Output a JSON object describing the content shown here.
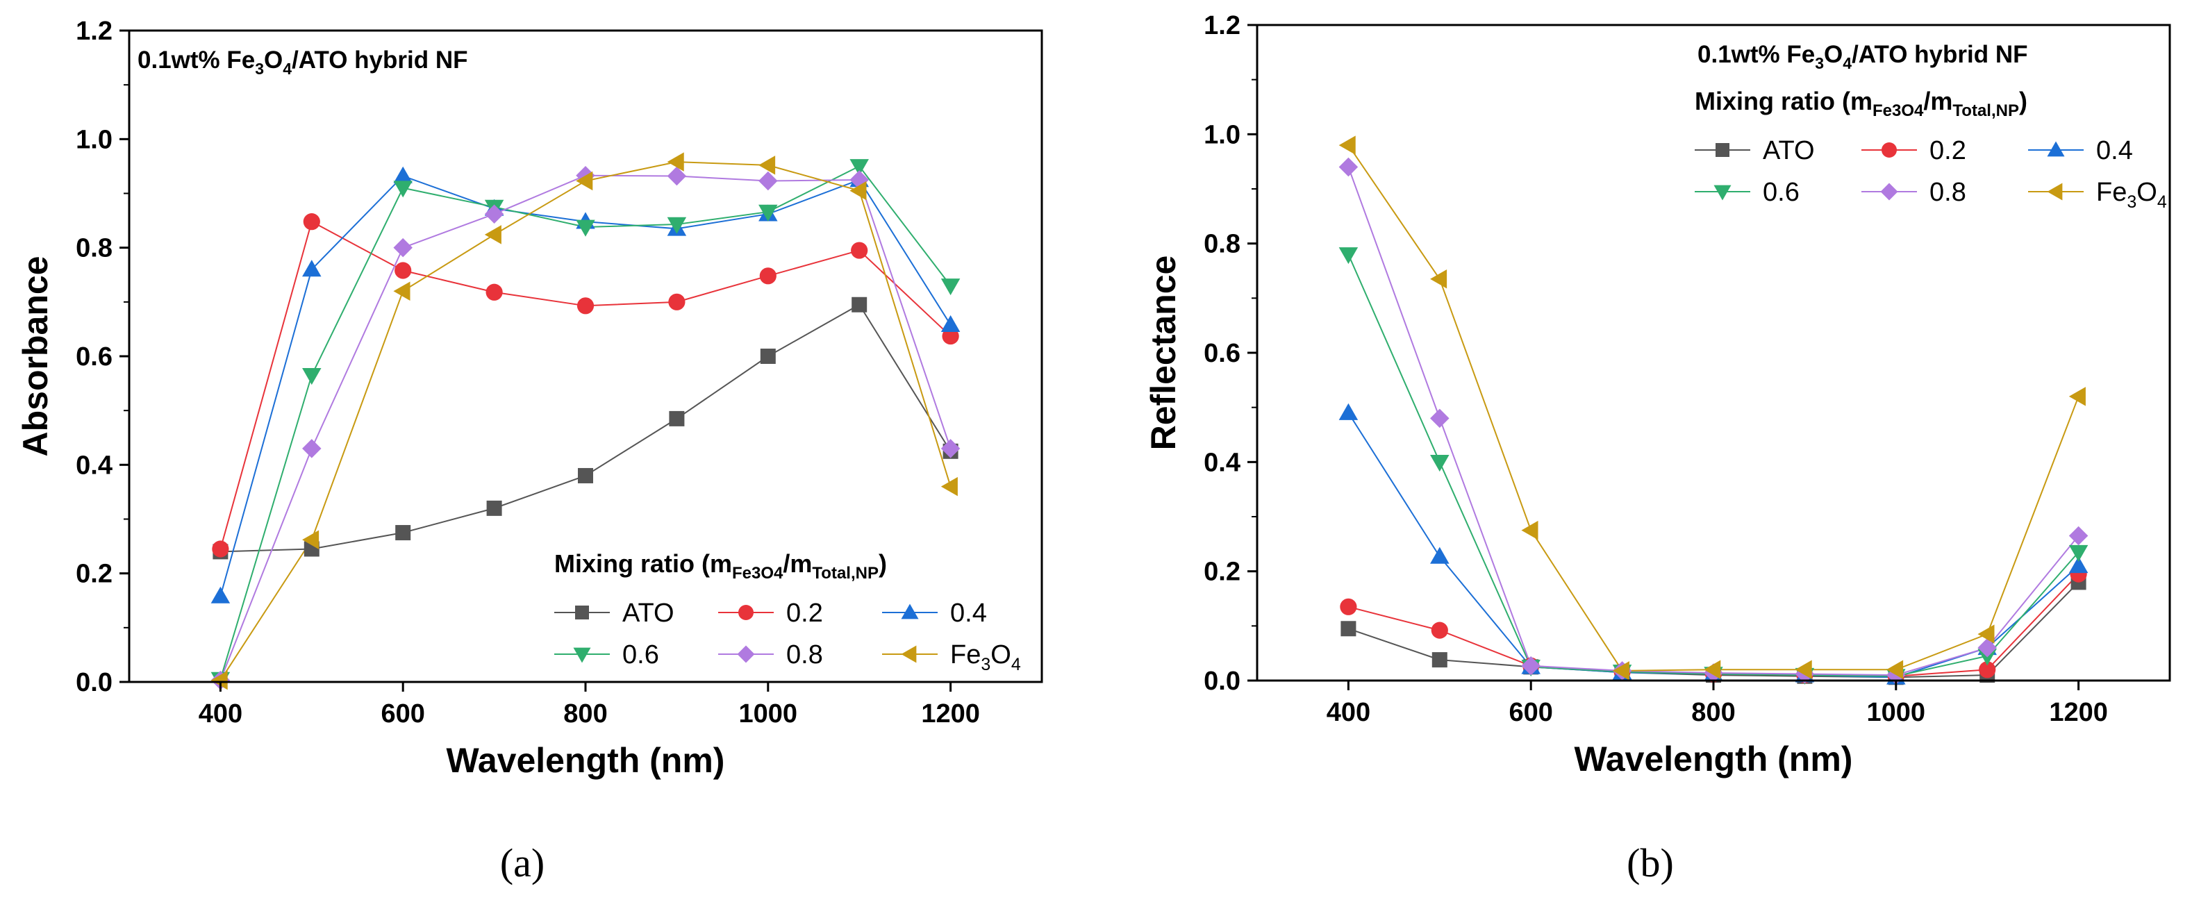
{
  "figure": {
    "panels": [
      "(a)",
      "(b)"
    ]
  },
  "series_styles": [
    {
      "name": "ATO",
      "color": "#555555",
      "marker": "square"
    },
    {
      "name": "0.2",
      "color": "#e8333a",
      "marker": "circle"
    },
    {
      "name": "0.4",
      "color": "#1c6fd6",
      "marker": "triangle-up"
    },
    {
      "name": "0.6",
      "color": "#2fae6e",
      "marker": "triangle-down"
    },
    {
      "name": "0.8",
      "color": "#b07ae0",
      "marker": "diamond"
    },
    {
      "name": "Fe3O4",
      "color": "#c89a12",
      "marker": "triangle-left"
    }
  ],
  "chart_data": [
    {
      "type": "line",
      "panel": "(a)",
      "title": "0.1wt% Fe3O4/ATO hybrid NF",
      "title_parts": [
        [
          "0.1wt% Fe",
          ""
        ],
        [
          "3",
          "sub"
        ],
        [
          "O",
          ""
        ],
        [
          "4",
          "sub"
        ],
        [
          "/ATO hybrid NF",
          ""
        ]
      ],
      "xlabel": "Wavelength (nm)",
      "ylabel": "Absorbance",
      "xlim": [
        300,
        1300
      ],
      "ylim": [
        0,
        1.2
      ],
      "xticks": [
        400,
        600,
        800,
        1000,
        1200
      ],
      "yticks": [
        0.0,
        0.2,
        0.4,
        0.6,
        0.8,
        1.0,
        1.2
      ],
      "yticklabels": [
        "0.0",
        "0.2",
        "0.4",
        "0.6",
        "0.8",
        "1.0",
        "1.2"
      ],
      "legend_title": "Mixing ratio (mFe3O4/mTotal,NP)",
      "legend_title_parts": [
        [
          "Mixing ratio (m",
          ""
        ],
        [
          "Fe3O4",
          "sub"
        ],
        [
          "/m",
          ""
        ],
        [
          "Total,NP",
          "sub"
        ],
        [
          ")",
          ""
        ]
      ],
      "legend_location": "lower-right",
      "x": [
        400,
        500,
        600,
        700,
        800,
        900,
        1000,
        1100,
        1200
      ],
      "series": [
        {
          "name": "ATO",
          "values": [
            0.24,
            0.245,
            0.275,
            0.32,
            0.38,
            0.485,
            0.6,
            0.695,
            0.425
          ]
        },
        {
          "name": "0.2",
          "values": [
            0.245,
            0.848,
            0.758,
            0.718,
            0.693,
            0.7,
            0.748,
            0.795,
            0.637
          ]
        },
        {
          "name": "0.4",
          "values": [
            0.158,
            0.76,
            0.932,
            0.872,
            0.848,
            0.835,
            0.862,
            0.925,
            0.658
          ]
        },
        {
          "name": "0.6",
          "values": [
            0.005,
            0.565,
            0.91,
            0.875,
            0.838,
            0.843,
            0.866,
            0.95,
            0.73
          ]
        },
        {
          "name": "0.8",
          "values": [
            0.003,
            0.43,
            0.8,
            0.862,
            0.933,
            0.932,
            0.923,
            0.925,
            0.43
          ]
        },
        {
          "name": "Fe3O4",
          "values": [
            0.003,
            0.262,
            0.72,
            0.824,
            0.923,
            0.958,
            0.952,
            0.905,
            0.36
          ]
        }
      ]
    },
    {
      "type": "line",
      "panel": "(b)",
      "title": "0.1wt% Fe3O4/ATO hybrid NF",
      "title_parts": [
        [
          "0.1wt% Fe",
          ""
        ],
        [
          "3",
          "sub"
        ],
        [
          "O",
          ""
        ],
        [
          "4",
          "sub"
        ],
        [
          "/ATO hybrid NF",
          ""
        ]
      ],
      "xlabel": "Wavelength (nm)",
      "ylabel": "Reflectance",
      "xlim": [
        300,
        1300
      ],
      "ylim": [
        0,
        1.2
      ],
      "xticks": [
        400,
        600,
        800,
        1000,
        1200
      ],
      "yticks": [
        0.0,
        0.2,
        0.4,
        0.6,
        0.8,
        1.0,
        1.2
      ],
      "yticklabels": [
        "0.0",
        "0.2",
        "0.4",
        "0.6",
        "0.8",
        "1.0",
        "1.2"
      ],
      "legend_title": "Mixing ratio (mFe3O4/mTotal,NP)",
      "legend_title_parts": [
        [
          "Mixing ratio (m",
          ""
        ],
        [
          "Fe3O4",
          "sub"
        ],
        [
          "/m",
          ""
        ],
        [
          "Total,NP",
          "sub"
        ],
        [
          ")",
          ""
        ]
      ],
      "legend_location": "top-right",
      "x": [
        400,
        500,
        600,
        700,
        800,
        900,
        1000,
        1100,
        1200
      ],
      "series": [
        {
          "name": "ATO",
          "values": [
            0.095,
            0.038,
            0.025,
            0.015,
            0.01,
            0.008,
            0.006,
            0.01,
            0.18
          ]
        },
        {
          "name": "0.2",
          "values": [
            0.135,
            0.092,
            0.027,
            0.016,
            0.012,
            0.01,
            0.008,
            0.02,
            0.195
          ]
        },
        {
          "name": "0.4",
          "values": [
            0.49,
            0.227,
            0.025,
            0.015,
            0.012,
            0.01,
            0.006,
            0.06,
            0.21
          ]
        },
        {
          "name": "0.6",
          "values": [
            0.78,
            0.4,
            0.025,
            0.016,
            0.012,
            0.01,
            0.008,
            0.045,
            0.235
          ]
        },
        {
          "name": "0.8",
          "values": [
            0.94,
            0.48,
            0.027,
            0.018,
            0.014,
            0.012,
            0.01,
            0.06,
            0.265
          ]
        },
        {
          "name": "Fe3O4",
          "values": [
            0.98,
            0.735,
            0.275,
            0.018,
            0.02,
            0.02,
            0.02,
            0.085,
            0.52
          ]
        }
      ]
    }
  ]
}
